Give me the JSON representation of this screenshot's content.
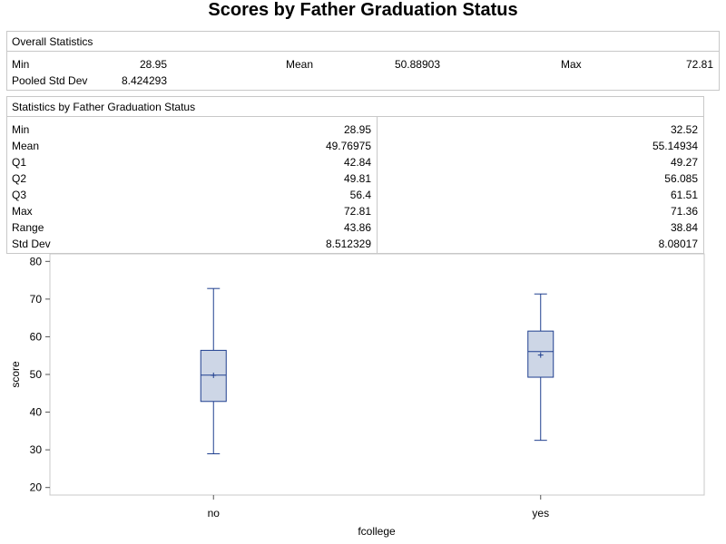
{
  "title": "Scores by Father Graduation Status",
  "overall": {
    "header": "Overall Statistics",
    "min_label": "Min",
    "min_value": "28.95",
    "mean_label": "Mean",
    "mean_value": "50.88903",
    "max_label": "Max",
    "max_value": "72.81",
    "psd_label": "Pooled Std Dev",
    "psd_value": "8.424293"
  },
  "by_group": {
    "header": "Statistics by Father Graduation Status",
    "rows": [
      {
        "label": "Min",
        "no": "28.95",
        "yes": "32.52"
      },
      {
        "label": "Mean",
        "no": "49.76975",
        "yes": "55.14934"
      },
      {
        "label": "Q1",
        "no": "42.84",
        "yes": "49.27"
      },
      {
        "label": "Q2",
        "no": "49.81",
        "yes": "56.085"
      },
      {
        "label": "Q3",
        "no": "56.4",
        "yes": "61.51"
      },
      {
        "label": "Max",
        "no": "72.81",
        "yes": "71.36"
      },
      {
        "label": "Range",
        "no": "43.86",
        "yes": "38.84"
      },
      {
        "label": "Std Dev",
        "no": "8.512329",
        "yes": "8.08017"
      }
    ]
  },
  "colors": {
    "box_fill": "#cdd6e6",
    "box_stroke": "#1f3f8f",
    "axis": "#7a7a7a",
    "border": "#c8c8c8"
  },
  "chart_data": {
    "type": "box",
    "xlabel": "fcollege",
    "ylabel": "score",
    "categories": [
      "no",
      "yes"
    ],
    "ylim": [
      18,
      82
    ],
    "yticks": [
      "20",
      "30",
      "40",
      "50",
      "60",
      "70",
      "80"
    ],
    "boxes": [
      {
        "category": "no",
        "min": 28.95,
        "q1": 42.84,
        "median": 49.81,
        "q3": 56.4,
        "max": 72.81,
        "mean": 49.76975
      },
      {
        "category": "yes",
        "min": 32.52,
        "q1": 49.27,
        "median": 56.085,
        "q3": 61.51,
        "max": 71.36,
        "mean": 55.14934
      }
    ]
  }
}
